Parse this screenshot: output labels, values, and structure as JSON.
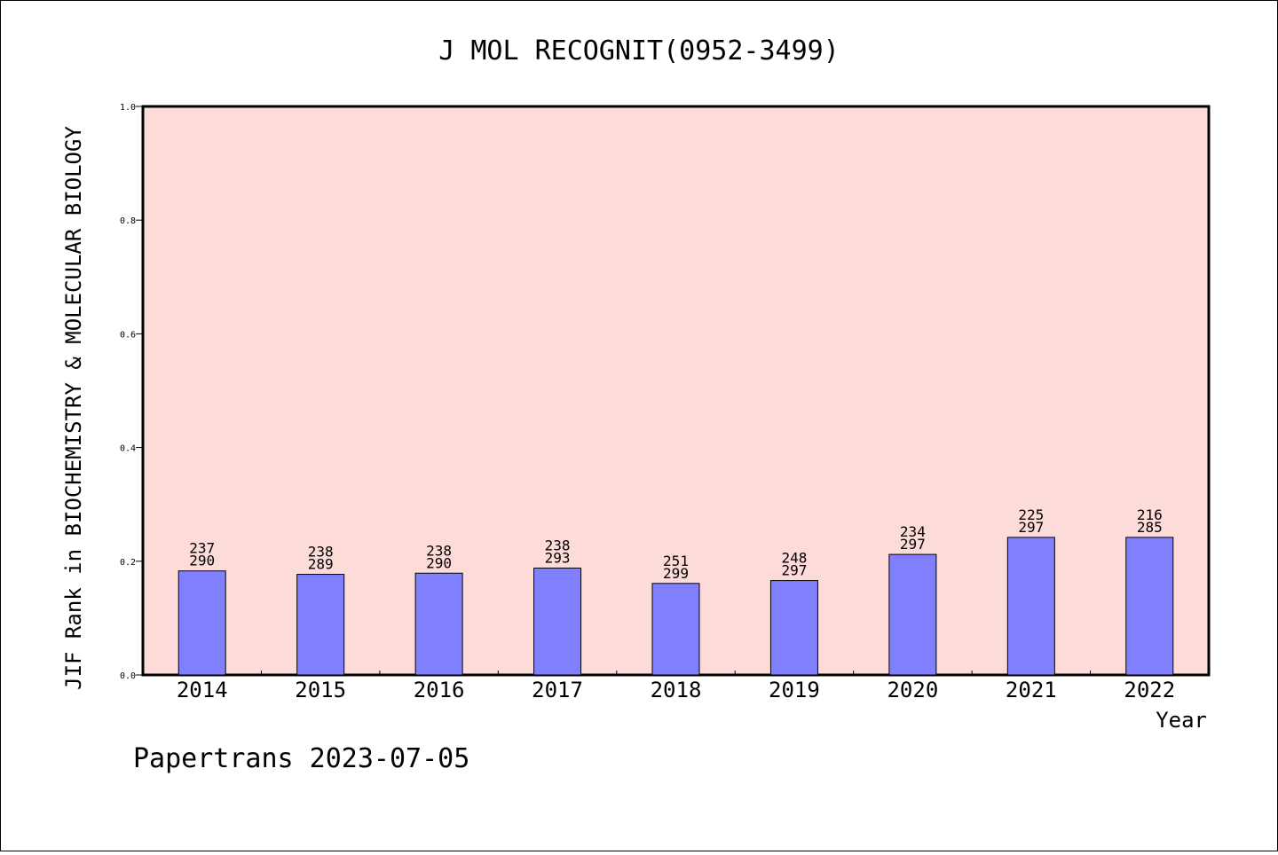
{
  "chart_data": {
    "type": "bar",
    "title": "J MOL RECOGNIT(0952-3499)",
    "xlabel": "Year",
    "ylabel": "JIF Rank in BIOCHEMISTRY & MOLECULAR BIOLOGY",
    "ylim": [
      0,
      1.0
    ],
    "yticks": [
      "0.0",
      "0.2",
      "0.4",
      "0.6",
      "0.8",
      "1.0"
    ],
    "categories": [
      "2014",
      "2015",
      "2016",
      "2017",
      "2018",
      "2019",
      "2020",
      "2021",
      "2022"
    ],
    "values": [
      0.183,
      0.177,
      0.179,
      0.188,
      0.161,
      0.166,
      0.212,
      0.242,
      0.242
    ],
    "ranks": [
      "237",
      "238",
      "238",
      "238",
      "251",
      "248",
      "234",
      "225",
      "216"
    ],
    "totals": [
      "290",
      "289",
      "290",
      "293",
      "299",
      "297",
      "297",
      "297",
      "285"
    ],
    "plot_background": "#fddbd8",
    "bar_color": "#8080ff",
    "grid": false,
    "legend": "none"
  },
  "footer": "Papertrans 2023-07-05"
}
